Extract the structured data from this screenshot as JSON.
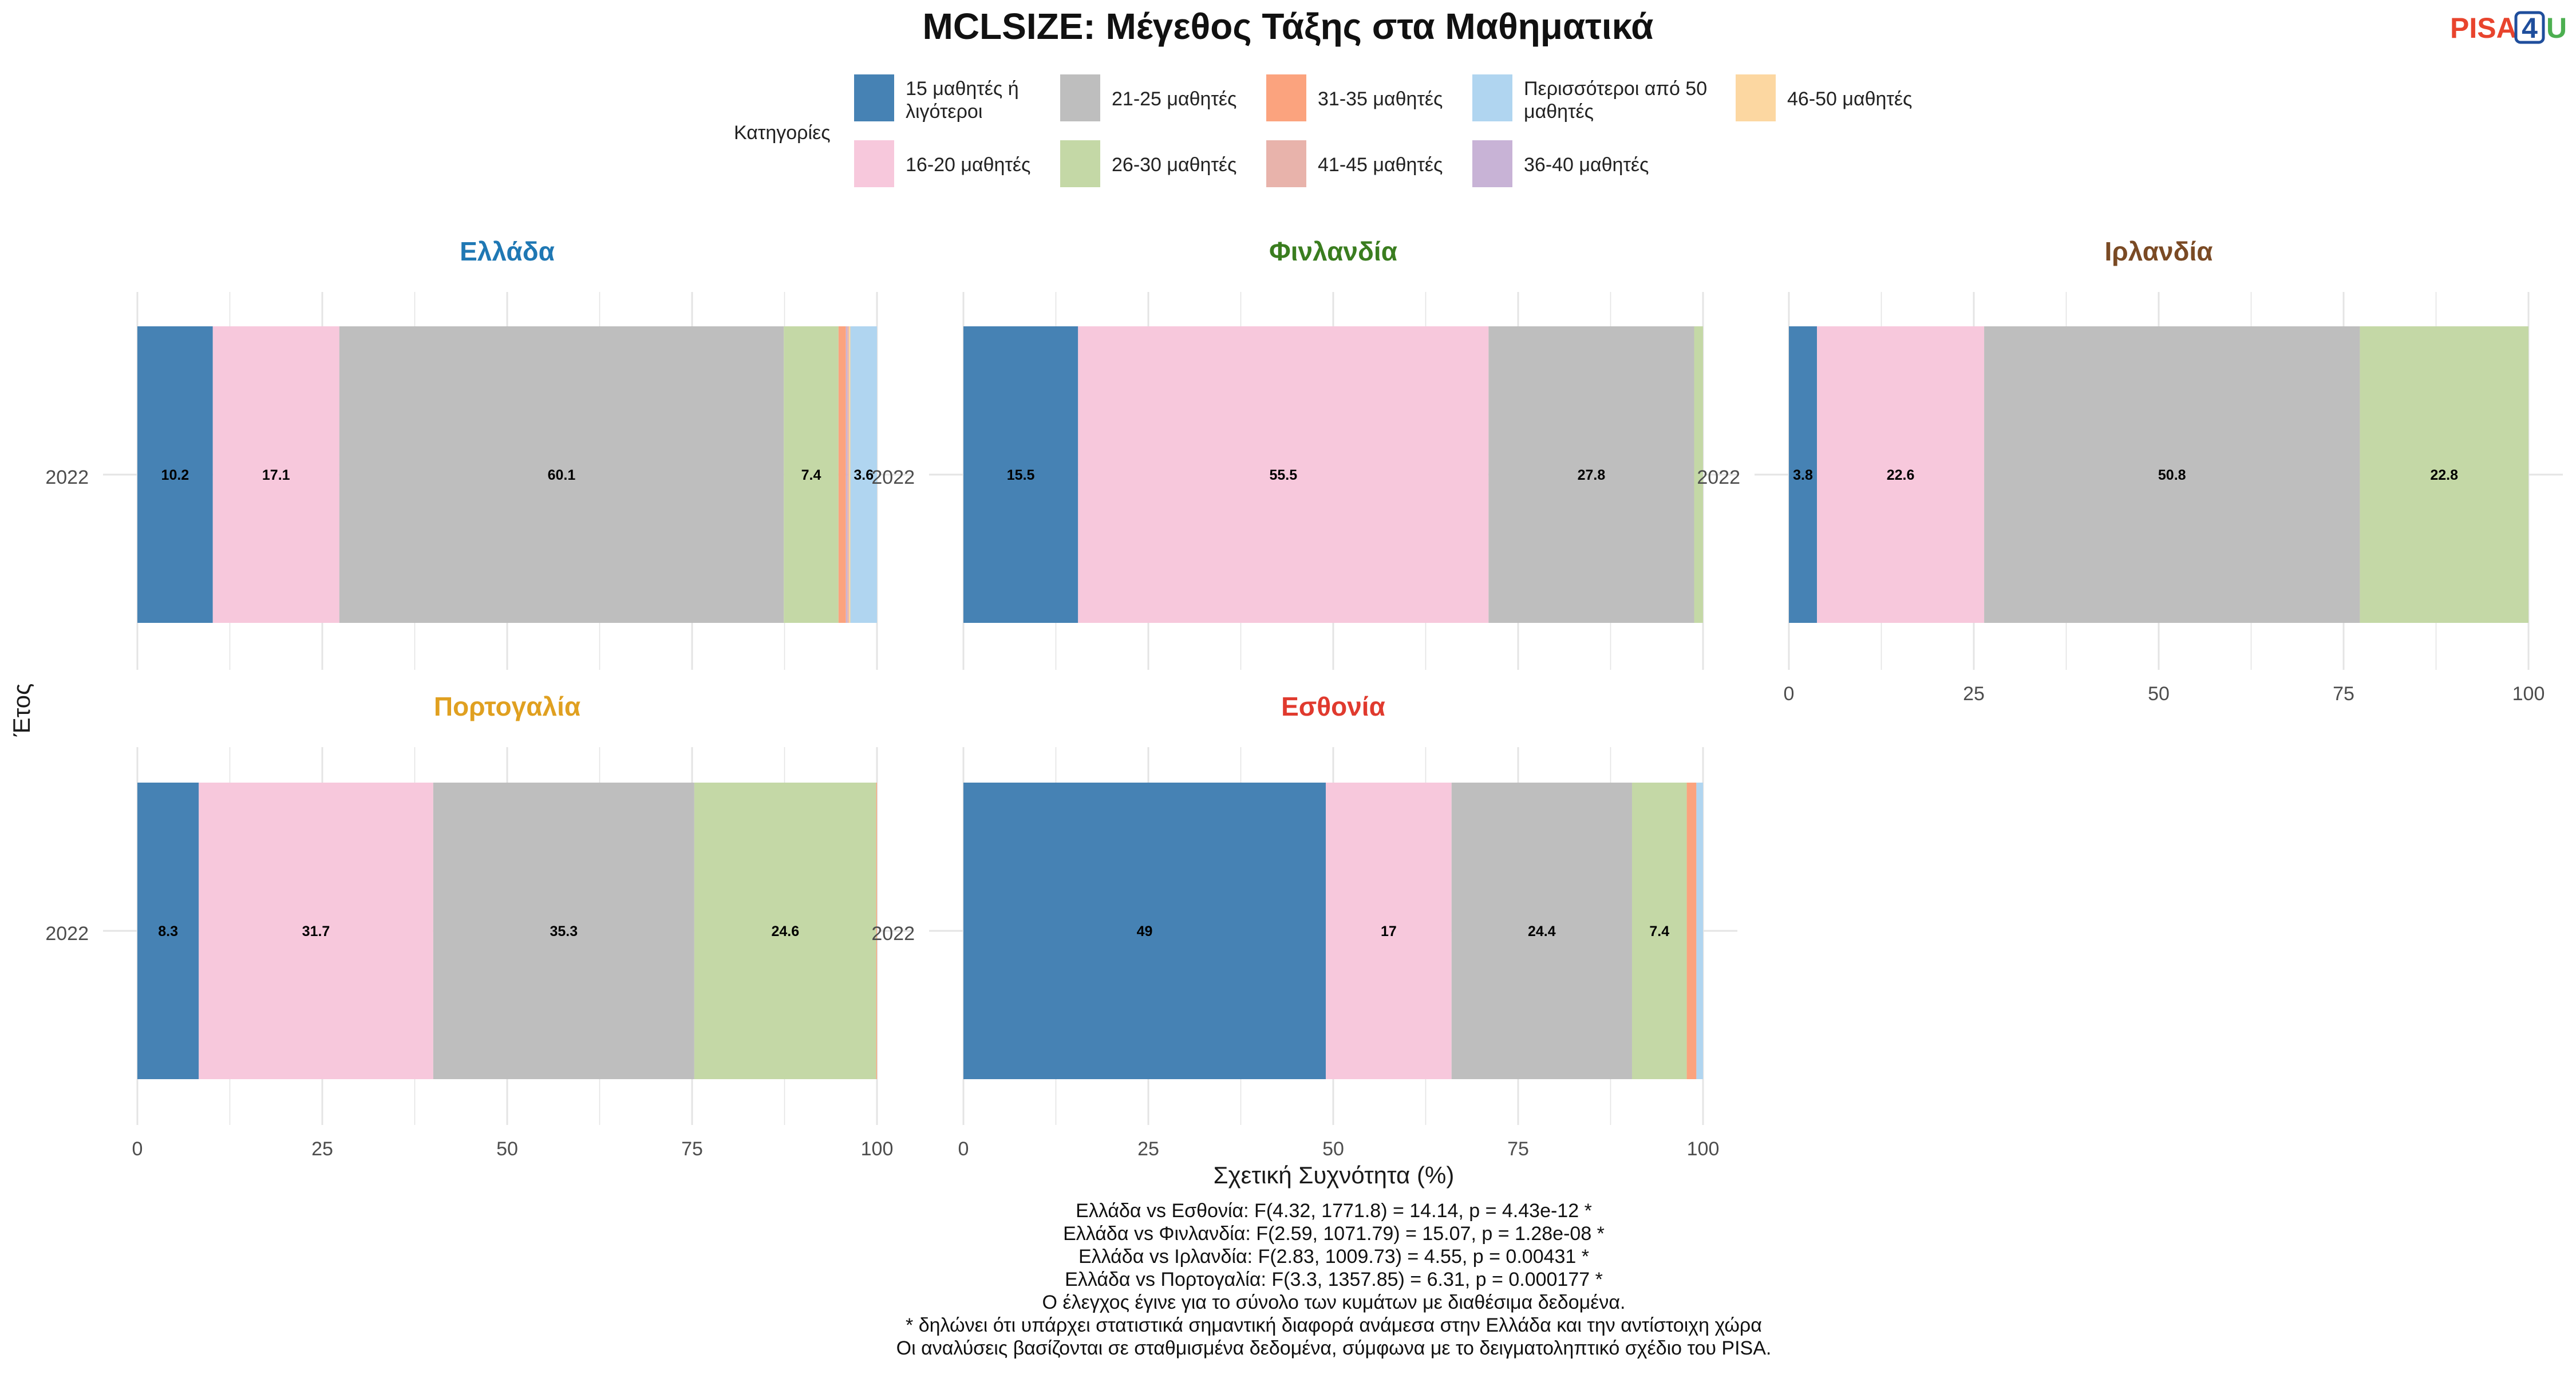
{
  "chart_data": {
    "type": "bar",
    "orientation": "horizontal",
    "stacked": true,
    "title": "MCLSIZE: Μέγεθος Τάξης στα Μαθηματικά",
    "xlabel": "Σχετική Συχνότητα (%)",
    "ylabel": "Έτος",
    "xlim": [
      0,
      100
    ],
    "x_ticks": [
      "0",
      "25",
      "50",
      "75",
      "100"
    ],
    "grid": true,
    "legend_title": "Κατηγορίες",
    "legend_position": "top",
    "logo": {
      "text_a": "PISA",
      "text_b": "4",
      "text_c": "U",
      "color_a": "#e8442d",
      "color_b": "#1f4e9c",
      "color_c": "#4caf50"
    },
    "categories": [
      {
        "name": "15 μαθητές ή λιγότεροι",
        "lines": [
          "15 μαθητές ή",
          "λιγότεροι"
        ],
        "color": "#4682b4"
      },
      {
        "name": "16-20 μαθητές",
        "lines": [
          "16-20 μαθητές"
        ],
        "color": "#f7c8dc"
      },
      {
        "name": "21-25 μαθητές",
        "lines": [
          "21-25 μαθητές"
        ],
        "color": "#bebebe"
      },
      {
        "name": "26-30 μαθητές",
        "lines": [
          "26-30 μαθητές"
        ],
        "color": "#c4d8a6"
      },
      {
        "name": "31-35 μαθητές",
        "lines": [
          "31-35 μαθητές"
        ],
        "color": "#fba37e"
      },
      {
        "name": "36-40 μαθητές",
        "lines": [
          "36-40 μαθητές"
        ],
        "color": "#c8b3d6"
      },
      {
        "name": "41-45 μαθητές",
        "lines": [
          "41-45 μαθητές"
        ],
        "color": "#e8b3ab"
      },
      {
        "name": "46-50 μαθητές",
        "lines": [
          "46-50 μαθητές"
        ],
        "color": "#fcd7a1"
      },
      {
        "name": "Περισσότεροι από 50 μαθητές",
        "lines": [
          "Περισσότεροι από 50",
          "μαθητές"
        ],
        "color": "#b0d5f0"
      }
    ],
    "legend_order": [
      [
        "15 μαθητές ή λιγότεροι",
        "21-25 μαθητές",
        "31-35 μαθητές",
        "Περισσότεροι από 50 μαθητές",
        "46-50 μαθητές"
      ],
      [
        "16-20 μαθητές",
        "26-30 μαθητές",
        "41-45 μαθητές",
        "36-40 μαθητές"
      ]
    ],
    "panels": [
      {
        "country": "Ελλάδα",
        "color": "#1f78b4",
        "year": "2022",
        "values": [
          10.2,
          17.1,
          60.1,
          7.4,
          1.0,
          0.2,
          0.2,
          0.2,
          3.6
        ],
        "show_x_ticks": false
      },
      {
        "country": "Φινλανδία",
        "color": "#3a7d1f",
        "year": "2022",
        "values": [
          15.5,
          55.5,
          27.8,
          1.2,
          0,
          0,
          0,
          0,
          0
        ],
        "show_x_ticks": false
      },
      {
        "country": "Ιρλανδία",
        "color": "#7a4a24",
        "year": "2022",
        "values": [
          3.8,
          22.6,
          50.8,
          22.8,
          0,
          0,
          0,
          0,
          0
        ],
        "show_x_ticks": true
      },
      {
        "country": "Πορτογαλία",
        "color": "#e0a020",
        "year": "2022",
        "values": [
          8.3,
          31.7,
          35.3,
          24.6,
          0.1,
          0,
          0,
          0,
          0
        ],
        "show_x_ticks": true
      },
      {
        "country": "Εσθονία",
        "color": "#e03a2e",
        "year": "2022",
        "values": [
          49,
          17,
          24.4,
          7.4,
          1.3,
          0,
          0,
          0,
          0.9
        ],
        "show_x_ticks": true
      }
    ],
    "label_threshold": 3,
    "notes": [
      "Ελλάδα vs Εσθονία: F(4.32, 1771.8) = 14.14, p = 4.43e-12 *",
      "Ελλάδα vs Φινλανδία: F(2.59, 1071.79) = 15.07, p = 1.28e-08 *",
      "Ελλάδα vs Ιρλανδία: F(2.83, 1009.73) = 4.55, p = 0.00431 *",
      "Ελλάδα vs Πορτογαλία: F(3.3, 1357.85) = 6.31, p = 0.000177 *",
      "Ο έλεγχος έγινε για το σύνολο των κυμάτων με διαθέσιμα δεδομένα.",
      "* δηλώνει ότι υπάρχει στατιστικά σημαντική διαφορά ανάμεσα στην Ελλάδα και την αντίστοιχη χώρα",
      "Οι αναλύσεις βασίζονται σε σταθμισμένα δεδομένα, σύμφωνα με το δειγματοληπτικό σχέδιο του PISA."
    ]
  }
}
